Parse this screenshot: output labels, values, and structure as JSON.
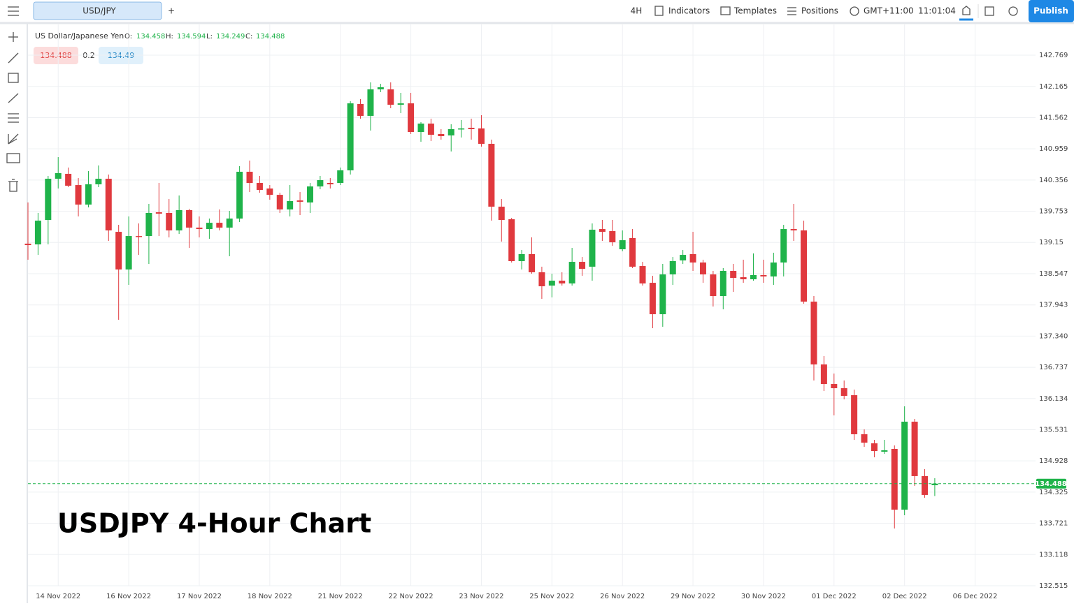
{
  "toolbar": {
    "symbol": "USD/JPY",
    "add": "+",
    "interval": "4H",
    "indicators": "Indicators",
    "templates": "Templates",
    "positions": "Positions",
    "timezone": "GMT+11:00",
    "clock": "11:01:04",
    "publish": "Publish"
  },
  "quote": {
    "sell": 134.488,
    "spread": 0.2,
    "buy": 134.49
  },
  "chart_data": {
    "type": "candlestick",
    "title": "USDJPY 4-Hour Chart",
    "symbol_name": "US Dollar/Japanese Yen",
    "ohlc_labels": [
      "O:",
      "H:",
      "L:",
      "C:"
    ],
    "up_color": "#1fb34a",
    "down_color": "#e0393e",
    "open": [
      139.126,
      139.112,
      139.585,
      140.381,
      140.476,
      140.259,
      139.881,
      140.273,
      140.381,
      139.355,
      138.627,
      139.274,
      139.274,
      139.733,
      139.72,
      139.382,
      139.774,
      139.436,
      139.409,
      139.53,
      139.436,
      139.611,
      140.516,
      140.3,
      140.192,
      140.07,
      139.787,
      139.962,
      139.922,
      140.232,
      140.3,
      140.3,
      140.543,
      141.825,
      141.596,
      142.108,
      142.108,
      141.811,
      141.838,
      141.285,
      141.447,
      141.245,
      141.218,
      141.339,
      141.366,
      141.353,
      141.056,
      139.841,
      139.598,
      138.789,
      138.924,
      138.573,
      138.316,
      138.411,
      138.357,
      138.775,
      138.681,
      139.409,
      139.369,
      139.018,
      139.234,
      138.694,
      138.37,
      137.763,
      138.532,
      138.802,
      138.924,
      138.762,
      138.532,
      138.114,
      138.6,
      138.478,
      138.438,
      138.519,
      138.492,
      138.762,
      139.409,
      139.382,
      138.006,
      136.792,
      136.414,
      136.333,
      136.198,
      135.443,
      135.268,
      135.106,
      135.16,
      133.986,
      135.686,
      134.634,
      134.458
    ],
    "high": [
      139.922,
      139.72,
      140.435,
      140.799,
      140.597,
      140.394,
      140.529,
      140.637,
      140.462,
      139.49,
      139.652,
      139.517,
      139.895,
      140.3,
      139.989,
      140.057,
      139.8,
      139.652,
      139.611,
      139.787,
      139.76,
      140.624,
      140.732,
      140.435,
      140.259,
      140.111,
      140.259,
      140.124,
      140.3,
      140.435,
      140.394,
      140.597,
      141.879,
      141.919,
      142.243,
      142.216,
      142.243,
      142.041,
      142.041,
      141.474,
      141.542,
      141.339,
      141.434,
      141.515,
      141.542,
      141.609,
      141.137,
      139.989,
      139.625,
      139.004,
      139.247,
      138.681,
      138.546,
      138.573,
      139.045,
      138.869,
      139.517,
      139.585,
      139.585,
      139.382,
      139.409,
      138.775,
      138.505,
      138.735,
      138.869,
      139.004,
      139.355,
      138.816,
      138.6,
      138.654,
      138.735,
      138.816,
      138.937,
      138.816,
      138.951,
      139.49,
      139.895,
      139.571,
      138.114,
      136.954,
      136.616,
      136.482,
      136.306,
      135.537,
      135.335,
      135.335,
      135.227,
      135.983,
      135.74,
      134.769,
      134.594
    ],
    "low": [
      138.816,
      138.91,
      139.112,
      140.192,
      140.219,
      139.652,
      139.827,
      140.219,
      139.18,
      137.655,
      138.33,
      138.91,
      138.735,
      139.274,
      139.247,
      139.315,
      139.045,
      139.247,
      139.22,
      139.382,
      138.883,
      139.544,
      140.124,
      140.111,
      139.976,
      139.72,
      139.652,
      139.679,
      139.72,
      140.178,
      140.192,
      140.259,
      140.462,
      141.542,
      141.312,
      142.054,
      141.744,
      141.65,
      141.245,
      141.096,
      141.11,
      141.137,
      140.908,
      141.178,
      141.137,
      141.002,
      139.571,
      139.166,
      138.762,
      138.627,
      138.546,
      138.06,
      138.087,
      138.316,
      138.316,
      138.505,
      138.411,
      139.18,
      139.085,
      138.978,
      138.654,
      138.316,
      137.493,
      137.52,
      138.33,
      138.735,
      138.6,
      138.37,
      137.911,
      137.857,
      138.195,
      138.37,
      138.411,
      138.37,
      138.33,
      138.492,
      139.18,
      137.966,
      136.482,
      136.279,
      135.807,
      136.117,
      135.335,
      135.2,
      134.998,
      135.065,
      133.622,
      133.878,
      134.445,
      134.216,
      134.249
    ],
    "close": [
      139.099,
      139.571,
      140.381,
      140.489,
      140.246,
      139.881,
      140.273,
      140.381,
      139.382,
      138.627,
      139.274,
      139.261,
      139.72,
      139.706,
      139.382,
      139.774,
      139.436,
      139.409,
      139.53,
      139.436,
      139.611,
      140.516,
      140.3,
      140.165,
      140.07,
      139.787,
      139.949,
      139.935,
      140.232,
      140.354,
      140.273,
      140.543,
      141.838,
      141.596,
      142.108,
      142.149,
      141.811,
      141.838,
      141.285,
      141.447,
      141.231,
      141.204,
      141.339,
      141.353,
      141.339,
      141.056,
      139.841,
      139.585,
      138.789,
      138.924,
      138.573,
      138.303,
      138.411,
      138.357,
      138.775,
      138.64,
      139.396,
      139.355,
      139.153,
      139.193,
      138.681,
      138.357,
      137.763,
      138.532,
      138.789,
      138.91,
      138.762,
      138.532,
      138.114,
      138.6,
      138.465,
      138.438,
      138.519,
      138.492,
      138.762,
      139.409,
      139.382,
      138.006,
      136.792,
      136.414,
      136.333,
      136.185,
      135.443,
      135.281,
      135.119,
      135.133,
      133.986,
      135.686,
      134.634,
      134.27,
      134.488
    ],
    "xlim": [
      0,
      100
    ],
    "xticks": [
      {
        "value": 3,
        "label": "14 Nov 2022"
      },
      {
        "value": 10,
        "label": "16 Nov 2022"
      },
      {
        "value": 17,
        "label": "17 Nov 2022"
      },
      {
        "value": 24,
        "label": "18 Nov 2022"
      },
      {
        "value": 31,
        "label": "21 Nov 2022"
      },
      {
        "value": 38,
        "label": "22 Nov 2022"
      },
      {
        "value": 45,
        "label": "23 Nov 2022"
      },
      {
        "value": 52,
        "label": "25 Nov 2022"
      },
      {
        "value": 59,
        "label": "26 Nov 2022"
      },
      {
        "value": 66,
        "label": "29 Nov 2022"
      },
      {
        "value": 73,
        "label": "30 Nov 2022"
      },
      {
        "value": 80,
        "label": "01 Dec 2022"
      },
      {
        "value": 87,
        "label": "02 Dec 2022"
      },
      {
        "value": 94,
        "label": "06 Dec 2022"
      }
    ],
    "ylim": [
      132.515,
      143.363
    ],
    "yticks": [
      132.515,
      133.118,
      133.721,
      134.325,
      134.928,
      135.531,
      136.134,
      136.737,
      {
        "value": 137.34,
        "label": "137.340"
      },
      137.943,
      138.547,
      139.15,
      139.753,
      140.356,
      140.959,
      141.562,
      142.165,
      142.769
    ],
    "grid": true
  }
}
